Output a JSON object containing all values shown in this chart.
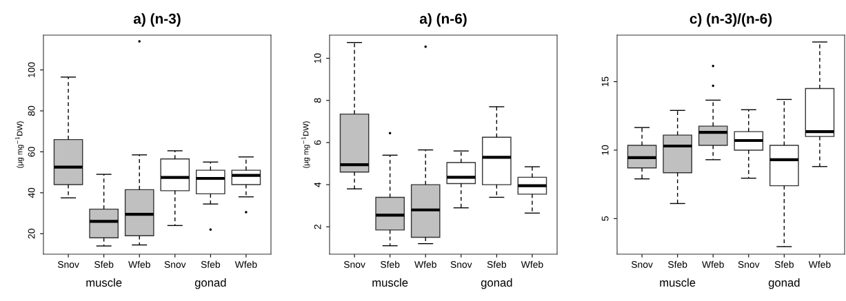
{
  "chart_data": [
    {
      "type": "box",
      "title": "a) (n-3)",
      "ylabel": "(µg mg$^{−1}$DW)",
      "categories": [
        "Snov",
        "Sfeb",
        "Wfeb",
        "Snov",
        "Sfeb",
        "Wfeb"
      ],
      "annotations": [
        "muscle",
        "gonad"
      ],
      "colors": [
        "#c0c0c0",
        "#c0c0c0",
        "#c0c0c0",
        "#ffffff",
        "#ffffff",
        "#ffffff"
      ],
      "ylim": [
        10,
        117
      ],
      "yticks": [
        20,
        40,
        60,
        80,
        100
      ],
      "grid": false,
      "boxes": [
        {
          "low": 37.5,
          "q1": 44,
          "median": 52.5,
          "q3": 66,
          "high": 96.5
        },
        {
          "low": 14,
          "q1": 18,
          "median": 26,
          "q3": 32,
          "high": 49
        },
        {
          "low": 14.5,
          "q1": 19,
          "median": 29.5,
          "q3": 41.5,
          "high": 58.5,
          "outliers": [
            114
          ]
        },
        {
          "low": 24,
          "q1": 41,
          "median": 47.5,
          "q3": 56.5,
          "high": 60.5
        },
        {
          "low": 34.5,
          "q1": 39.5,
          "median": 47,
          "q3": 51,
          "high": 55,
          "outliers": [
            22
          ]
        },
        {
          "low": 38,
          "q1": 44,
          "median": 48.5,
          "q3": 51,
          "high": 57.5,
          "outliers": [
            30.5
          ]
        }
      ]
    },
    {
      "type": "box",
      "title": "a) (n-6)",
      "ylabel": "(µg mg$^{−1}$DW)",
      "categories": [
        "Snov",
        "Sfeb",
        "Wfeb",
        "Snov",
        "Sfeb",
        "Wfeb"
      ],
      "annotations": [
        "muscle",
        "gonad"
      ],
      "colors": [
        "#c0c0c0",
        "#c0c0c0",
        "#c0c0c0",
        "#ffffff",
        "#ffffff",
        "#ffffff"
      ],
      "ylim": [
        0.7,
        11.1
      ],
      "yticks": [
        2,
        4,
        6,
        8,
        10
      ],
      "grid": false,
      "boxes": [
        {
          "low": 3.8,
          "q1": 4.6,
          "median": 4.95,
          "q3": 7.35,
          "high": 10.75
        },
        {
          "low": 1.1,
          "q1": 1.85,
          "median": 2.55,
          "q3": 3.4,
          "high": 5.4,
          "outliers": [
            6.45
          ]
        },
        {
          "low": 1.2,
          "q1": 1.5,
          "median": 2.8,
          "q3": 4.0,
          "high": 5.65,
          "outliers": [
            10.55
          ]
        },
        {
          "low": 2.9,
          "q1": 4.05,
          "median": 4.35,
          "q3": 5.05,
          "high": 5.6
        },
        {
          "low": 3.4,
          "q1": 4.0,
          "median": 5.3,
          "q3": 6.25,
          "high": 7.7
        },
        {
          "low": 2.65,
          "q1": 3.55,
          "median": 3.95,
          "q3": 4.35,
          "high": 4.85
        }
      ]
    },
    {
      "type": "box",
      "title": "c) (n-3)/(n-6)",
      "categories": [
        "Snov",
        "Sfeb",
        "Wfeb",
        "Snov",
        "Sfeb",
        "Wfeb"
      ],
      "annotations": [
        "muscle",
        "gonad"
      ],
      "colors": [
        "#c0c0c0",
        "#c0c0c0",
        "#c0c0c0",
        "#ffffff",
        "#ffffff",
        "#ffffff"
      ],
      "ylim": [
        2.4,
        18.4
      ],
      "yticks": [
        5,
        10,
        15
      ],
      "grid": false,
      "boxes": [
        {
          "low": 7.9,
          "q1": 8.7,
          "median": 9.45,
          "q3": 10.35,
          "high": 11.65
        },
        {
          "low": 6.1,
          "q1": 8.35,
          "median": 10.3,
          "q3": 11.1,
          "high": 12.9
        },
        {
          "low": 9.3,
          "q1": 10.35,
          "median": 11.3,
          "q3": 11.75,
          "high": 13.65,
          "outliers": [
            14.7,
            16.15
          ]
        },
        {
          "low": 7.95,
          "q1": 10.0,
          "median": 10.7,
          "q3": 11.35,
          "high": 12.95
        },
        {
          "low": 2.95,
          "q1": 7.4,
          "median": 9.3,
          "q3": 10.35,
          "high": 13.7
        },
        {
          "low": 8.8,
          "q1": 11.0,
          "median": 11.35,
          "q3": 14.5,
          "high": 17.9
        }
      ]
    }
  ]
}
